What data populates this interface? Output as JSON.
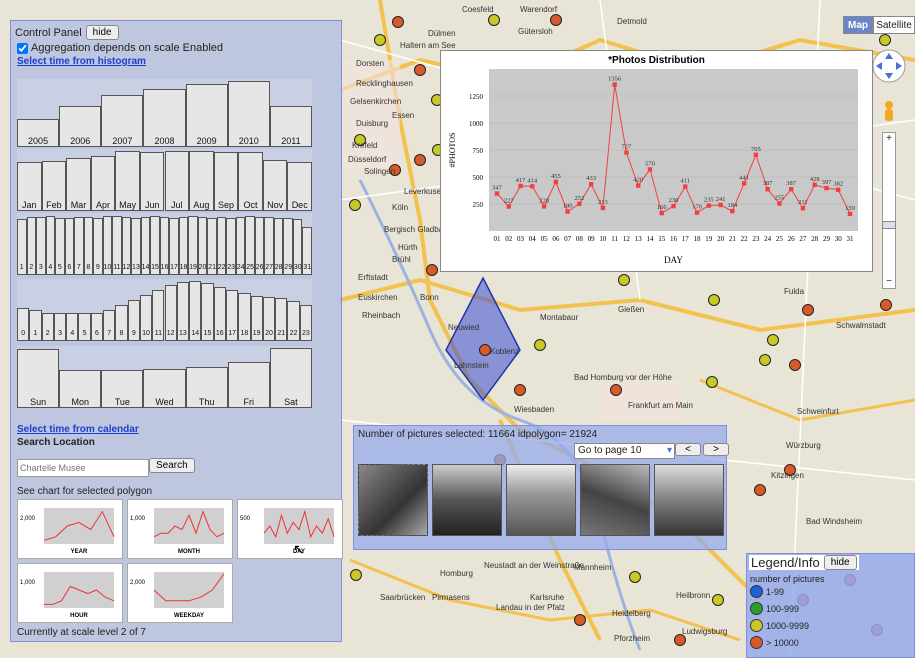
{
  "control_panel": {
    "title": "Control Panel",
    "hide_label": "hide",
    "aggregation_label": "Aggregation depends on scale Enabled",
    "histogram_link": "Select time from histogram",
    "calendar_link": "Select time from calendar",
    "search_title": "Search Location",
    "search_value": "",
    "search_placeholder": "Chartelle Musée",
    "search_button": "Search",
    "polygon_chart_title": "See chart for selected polygon",
    "scale_text": "Currently at scale level 2 of 7",
    "years": [
      "2005",
      "2006",
      "2007",
      "2008",
      "2009",
      "2010",
      "2011"
    ],
    "year_levels": [
      0.3,
      0.55,
      0.75,
      0.85,
      0.95,
      1.0,
      0.55
    ],
    "months": [
      "Jan",
      "Feb",
      "Mar",
      "Apr",
      "May",
      "Jun",
      "Jul",
      "Aug",
      "Sep",
      "Oct",
      "Nov",
      "Dec"
    ],
    "month_levels": [
      0.78,
      0.8,
      0.85,
      0.9,
      1.0,
      0.98,
      1.0,
      1.0,
      0.97,
      0.97,
      0.82,
      0.78
    ],
    "days": [
      "1",
      "2",
      "3",
      "4",
      "5",
      "6",
      "7",
      "8",
      "9",
      "10",
      "11",
      "12",
      "13",
      "14",
      "15",
      "16",
      "17",
      "18",
      "19",
      "20",
      "21",
      "22",
      "23",
      "24",
      "25",
      "26",
      "27",
      "28",
      "29",
      "30",
      "31"
    ],
    "day_levels": [
      0.92,
      0.96,
      0.95,
      0.97,
      0.94,
      0.93,
      0.95,
      0.96,
      0.94,
      0.97,
      0.98,
      0.95,
      0.93,
      0.96,
      0.97,
      0.95,
      0.94,
      0.96,
      0.97,
      0.95,
      0.94,
      0.96,
      0.93,
      0.95,
      0.97,
      0.96,
      0.95,
      0.93,
      0.94,
      0.92,
      0.75
    ],
    "hours": [
      "0",
      "1",
      "2",
      "3",
      "4",
      "5",
      "6",
      "7",
      "8",
      "9",
      "10",
      "11",
      "12",
      "13",
      "14",
      "15",
      "16",
      "17",
      "18",
      "19",
      "20",
      "21",
      "22",
      "23"
    ],
    "hour_levels": [
      0.45,
      0.4,
      0.35,
      0.35,
      0.35,
      0.35,
      0.35,
      0.4,
      0.5,
      0.62,
      0.72,
      0.82,
      0.92,
      0.98,
      1.0,
      0.95,
      0.88,
      0.82,
      0.75,
      0.7,
      0.68,
      0.65,
      0.6,
      0.52
    ],
    "weekdays": [
      "Sun",
      "Mon",
      "Tue",
      "Wed",
      "Thu",
      "Fri",
      "Sat"
    ],
    "weekday_levels": [
      0.98,
      0.55,
      0.55,
      0.58,
      0.62,
      0.72,
      1.0
    ],
    "mini_charts": [
      {
        "label": "YEAR",
        "ytick": "2,000"
      },
      {
        "label": "MONTH",
        "ytick": "1,000"
      },
      {
        "label": "DAY",
        "ytick": "500"
      },
      {
        "label": "HOUR",
        "ytick": "1,000"
      },
      {
        "label": "WEEKDAY",
        "ytick": "2,000"
      }
    ]
  },
  "gallery": {
    "info": "Number of pictures selected: 11664 idpolygon= 21924",
    "page_select": "Go to page 10",
    "prev_label": "<",
    "next_label": ">"
  },
  "map": {
    "map_button": "Map",
    "satellite_button": "Satellite",
    "polygon_color": "#3a4fd6",
    "cities": [
      "Coesfeld",
      "Warendorf",
      "Gütersloh",
      "Detmold",
      "Haltern am See",
      "Dülmen",
      "Dorsten",
      "Recklinghausen",
      "Gelsenkirchen",
      "Essen",
      "Duisburg",
      "Krefeld",
      "Düsseldorf",
      "Solingen",
      "Leverkusen",
      "Köln",
      "Bergisch Gladbach",
      "Hürth",
      "Brühl",
      "Erftstadt",
      "Euskirchen",
      "Bonn",
      "Rheinbach",
      "Neuwied",
      "Koblenz",
      "Lahnstein",
      "Montabaur",
      "Wiesbaden",
      "Frankfurt am Main",
      "Bad Homburg vor der Höhe",
      "Gießen",
      "Schwalmstadt",
      "Fulda",
      "Würzburg",
      "Schweinfurt",
      "Kitzingen",
      "Saarbrücken",
      "Neustadt an der Weinstraße",
      "Mannheim",
      "Heidelberg",
      "Heilbronn",
      "Karlsruhe",
      "Pforzheim",
      "Ludwigsburg",
      "Pirmasens",
      "Homburg",
      "Landau in der Pfalz",
      "Bad Windsheim"
    ]
  },
  "chart": {
    "title": "*Photos Distribution",
    "ylabel": "#PHOTOS",
    "xlabel": "DAY"
  },
  "chart_data": {
    "type": "line",
    "title": "*Photos Distribution",
    "xlabel": "DAY",
    "ylabel": "#PHOTOS",
    "categories": [
      "01",
      "02",
      "03",
      "04",
      "05",
      "06",
      "07",
      "08",
      "09",
      "10",
      "11",
      "12",
      "13",
      "14",
      "15",
      "16",
      "17",
      "18",
      "19",
      "20",
      "21",
      "22",
      "23",
      "24",
      "25",
      "26",
      "27",
      "28",
      "29",
      "30",
      "31"
    ],
    "values": [
      347,
      227,
      417,
      414,
      228,
      455,
      180,
      252,
      433,
      213,
      1356,
      727,
      420,
      570,
      166,
      230,
      411,
      170,
      235,
      241,
      184,
      441,
      705,
      387,
      255,
      387,
      211,
      428,
      397,
      382,
      159
    ],
    "ylim": [
      0,
      1500
    ],
    "yticks": [
      250,
      500,
      750,
      1000,
      1250
    ],
    "color": "#f24040",
    "grid": true
  },
  "legend": {
    "title": "Legend/Info",
    "hide_label": "hide",
    "subtitle": "number of pictures",
    "items": [
      {
        "label": "1-99",
        "color": "#2060d8"
      },
      {
        "label": "100-999",
        "color": "#2aa02a"
      },
      {
        "label": "1000-9999",
        "color": "#c8c82a"
      },
      {
        "label": "> 10000",
        "color": "#d85a2a"
      }
    ]
  }
}
